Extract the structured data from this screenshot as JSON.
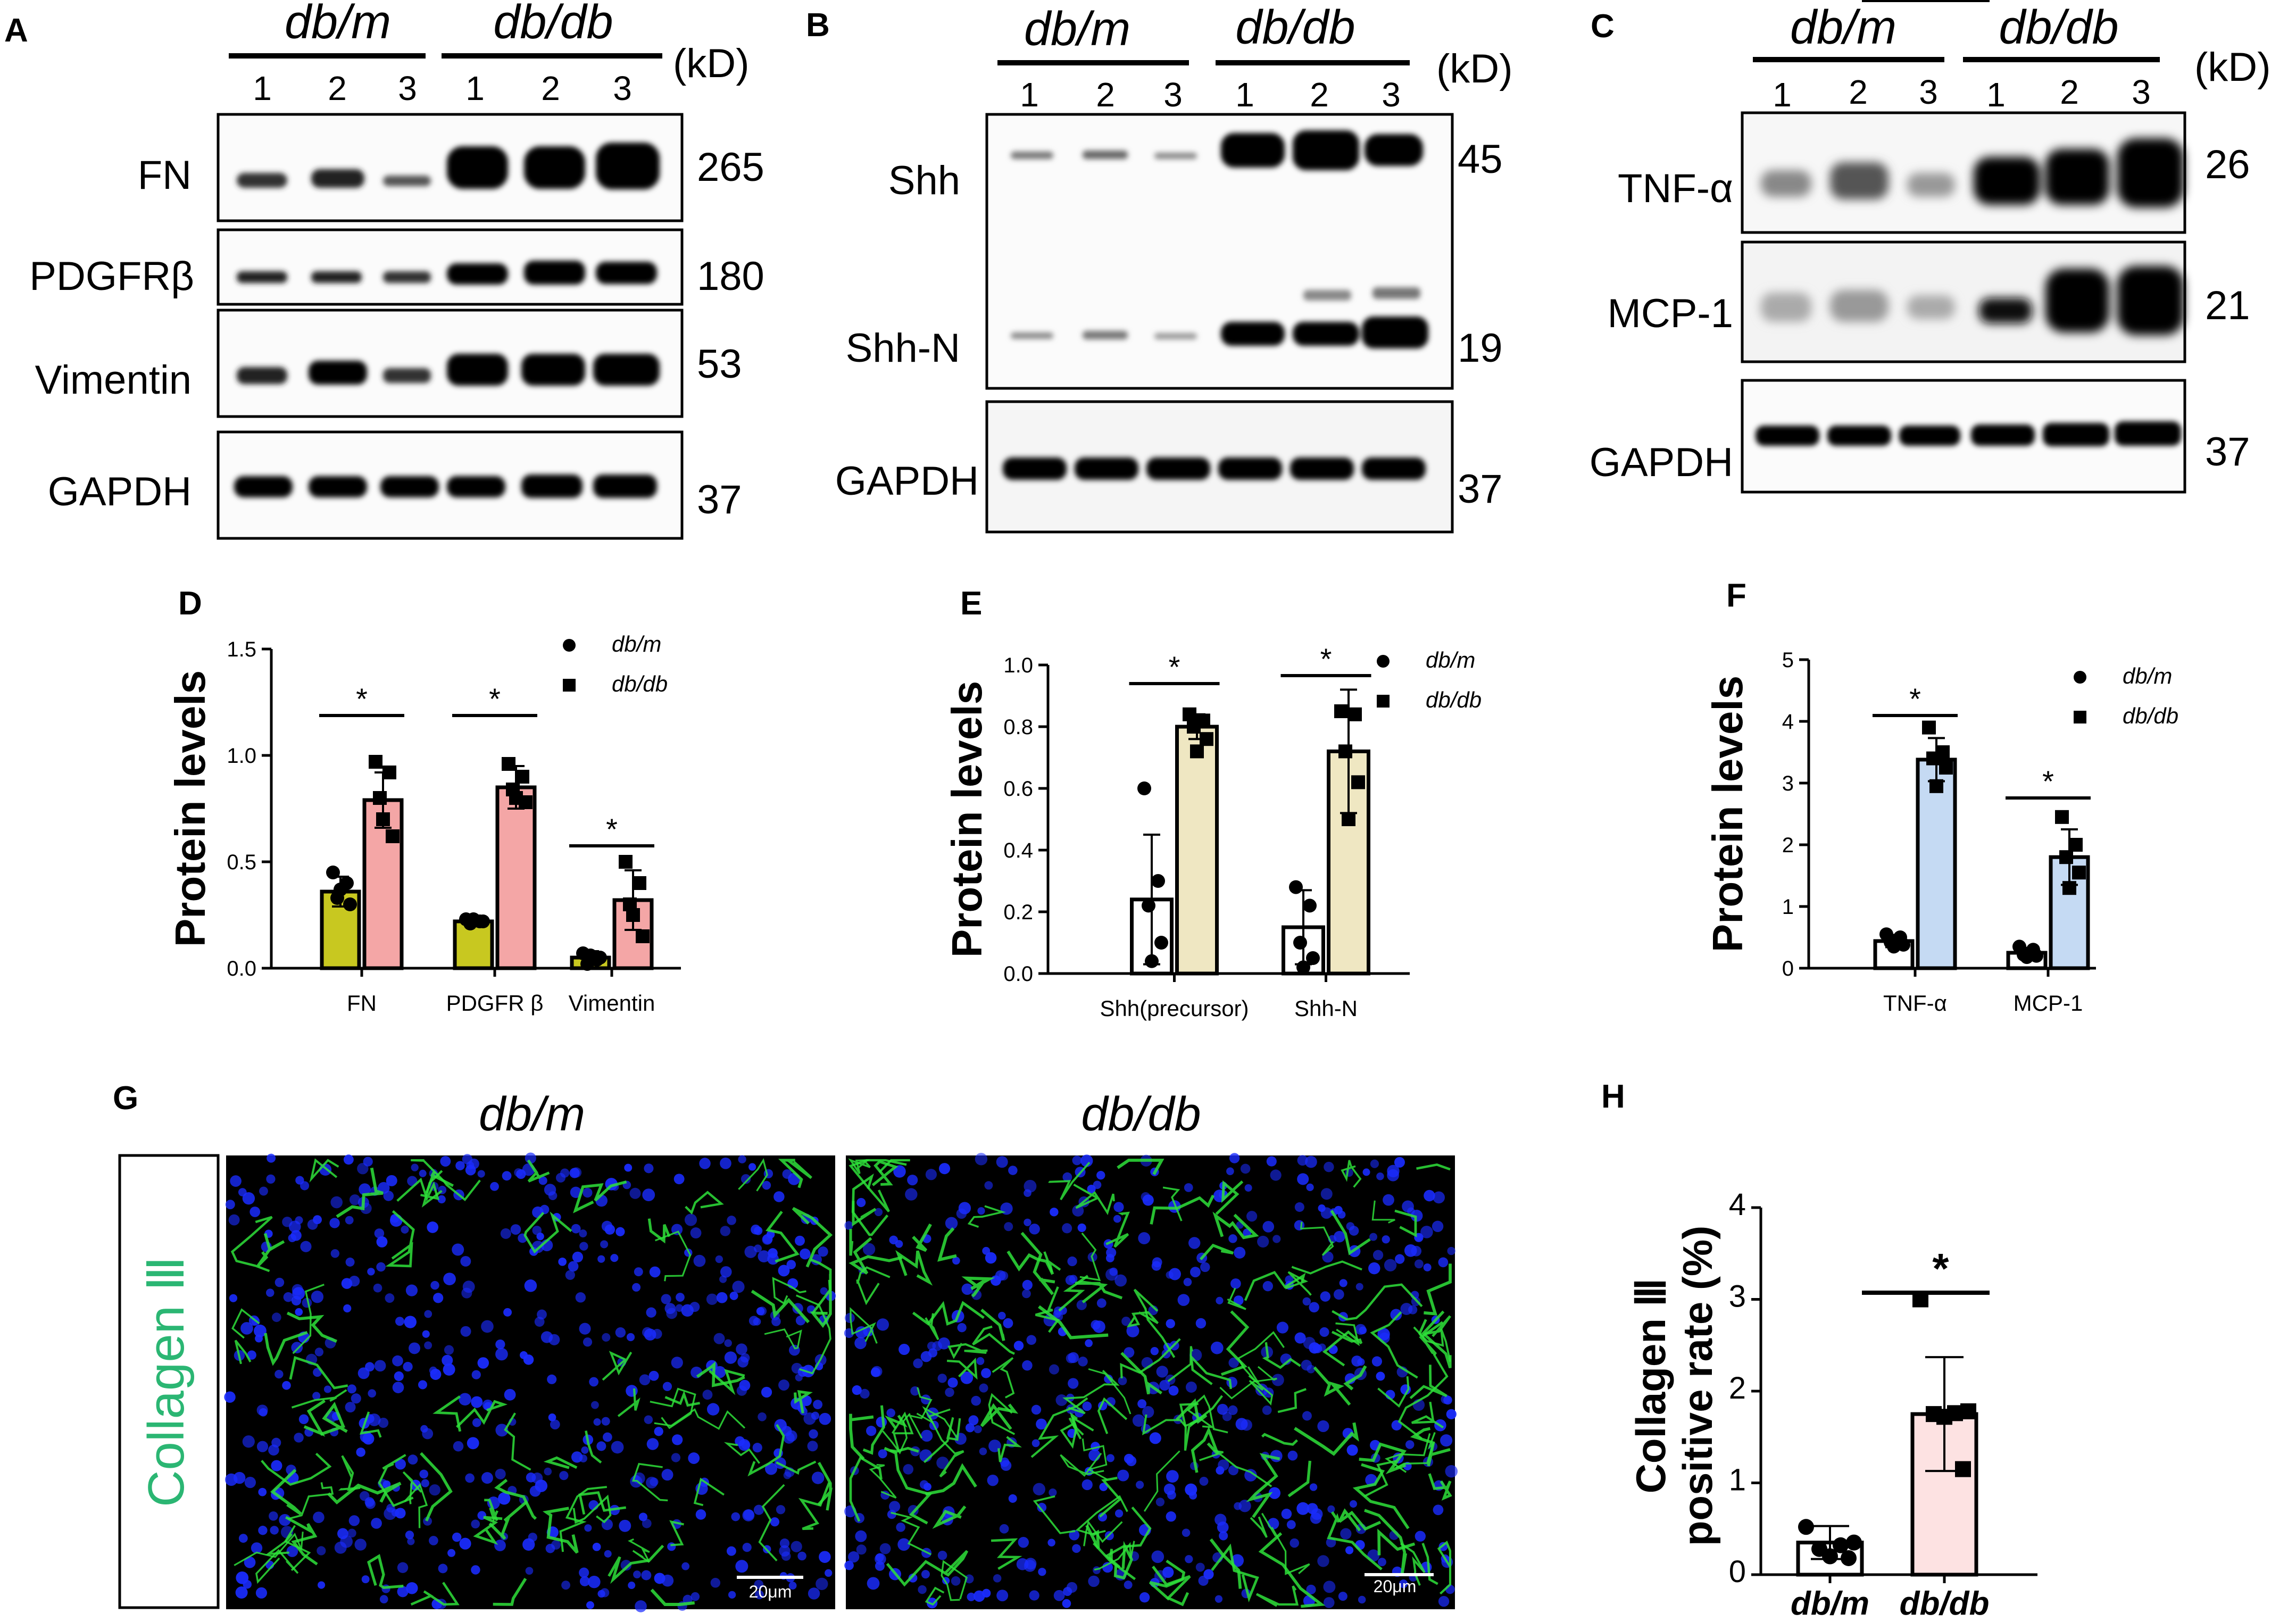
{
  "panels": {
    "A": {
      "letter": "A",
      "group1": "db/m",
      "group2": "db/db",
      "lanes": [
        "1",
        "2",
        "3",
        "1",
        "2",
        "3"
      ],
      "kd": "(kD)",
      "blots": [
        {
          "label": "FN",
          "mw": "265"
        },
        {
          "label": "PDGFRβ",
          "mw": "180"
        },
        {
          "label": "Vimentin",
          "mw": "53"
        },
        {
          "label": "GAPDH",
          "mw": "37"
        }
      ]
    },
    "B": {
      "letter": "B",
      "group1": "db/m",
      "group2": "db/db",
      "lanes": [
        "1",
        "2",
        "3",
        "1",
        "2",
        "3"
      ],
      "kd": "(kD)",
      "blots": [
        {
          "label": "Shh",
          "mw": "45"
        },
        {
          "label": "Shh-N",
          "mw": "19"
        },
        {
          "label": "GAPDH",
          "mw": "37"
        }
      ]
    },
    "C": {
      "letter": "C",
      "group1": "db/m",
      "group2": "db/db",
      "lanes": [
        "1",
        "2",
        "3",
        "1",
        "2",
        "3"
      ],
      "kd": "(kD)",
      "blots": [
        {
          "label": "TNF-α",
          "mw": "26"
        },
        {
          "label": "MCP-1",
          "mw": "21"
        },
        {
          "label": "GAPDH",
          "mw": "37"
        }
      ]
    },
    "G": {
      "letter": "G",
      "title_left": "db/m",
      "title_right": "db/db",
      "stain_label": "Collagen Ⅲ",
      "scale_bar": "20μm",
      "colors": {
        "nuclei": "#1a2cff",
        "collagen": "#2ee03a",
        "background": "#000000"
      }
    }
  },
  "chart_data": [
    {
      "panel": "D",
      "type": "bar",
      "categories": [
        "FN",
        "PDGFR β",
        "Vimentin"
      ],
      "ylabel": "Protein levels",
      "ylim": [
        0,
        1.5
      ],
      "yticks": [
        "0.0",
        "0.5",
        "1.0",
        "1.5"
      ],
      "series": [
        {
          "name": "db/m",
          "color": "#c8c820",
          "values": [
            0.36,
            0.22,
            0.05
          ],
          "errors": [
            0.07,
            0.01,
            0.03
          ],
          "points": [
            [
              0.45,
              0.4,
              0.33,
              0.3,
              0.37
            ],
            [
              0.23,
              0.22,
              0.21,
              0.22,
              0.23
            ],
            [
              0.07,
              0.04,
              0.02,
              0.05,
              0.06
            ]
          ]
        },
        {
          "name": "db/db",
          "color": "#f4a6a6",
          "values": [
            0.79,
            0.85,
            0.32
          ],
          "errors": [
            0.13,
            0.1,
            0.14
          ],
          "points": [
            [
              0.97,
              0.92,
              0.8,
              0.62,
              0.7
            ],
            [
              0.96,
              0.9,
              0.84,
              0.78,
              0.8
            ],
            [
              0.5,
              0.4,
              0.3,
              0.15,
              0.25
            ]
          ]
        }
      ],
      "significance": [
        "*",
        "*",
        "*"
      ],
      "legend": "top-right"
    },
    {
      "panel": "E",
      "type": "bar",
      "categories": [
        "Shh(precursor)",
        "Shh-N"
      ],
      "ylabel": "Protein levels",
      "ylim": [
        0,
        1.0
      ],
      "yticks": [
        "0.0",
        "0.2",
        "0.4",
        "0.6",
        "0.8",
        "1.0"
      ],
      "series": [
        {
          "name": "db/m",
          "color": "#ffffff",
          "values": [
            0.24,
            0.15
          ],
          "errors": [
            0.21,
            0.12
          ],
          "points": [
            [
              0.6,
              0.3,
              0.22,
              0.1,
              0.04
            ],
            [
              0.28,
              0.22,
              0.1,
              0.05,
              0.02
            ]
          ]
        },
        {
          "name": "db/db",
          "color": "#efe7c2",
          "values": [
            0.8,
            0.72
          ],
          "errors": [
            0.04,
            0.2
          ],
          "points": [
            [
              0.84,
              0.82,
              0.8,
              0.76,
              0.72
            ],
            [
              0.85,
              0.84,
              0.72,
              0.62,
              0.5
            ]
          ]
        }
      ],
      "significance": [
        "*",
        "*"
      ],
      "legend": "top-right"
    },
    {
      "panel": "F",
      "type": "bar",
      "categories": [
        "TNF-α",
        "MCP-1"
      ],
      "ylabel": "Protein levels",
      "ylim": [
        0,
        5
      ],
      "yticks": [
        "0",
        "1",
        "2",
        "3",
        "4",
        "5"
      ],
      "series": [
        {
          "name": "db/m",
          "color": "#ffffff",
          "values": [
            0.44,
            0.25
          ],
          "errors": [
            0.1,
            0.08
          ],
          "points": [
            [
              0.55,
              0.5,
              0.42,
              0.38,
              0.35
            ],
            [
              0.35,
              0.3,
              0.22,
              0.2,
              0.18
            ]
          ]
        },
        {
          "name": "db/db",
          "color": "#c5daf3",
          "values": [
            3.38,
            1.8
          ],
          "errors": [
            0.35,
            0.45
          ],
          "points": [
            [
              3.9,
              3.5,
              3.4,
              3.25,
              2.95
            ],
            [
              2.45,
              2.0,
              1.8,
              1.55,
              1.3
            ]
          ]
        }
      ],
      "significance": [
        "*",
        "*"
      ],
      "legend": "top-right"
    },
    {
      "panel": "H",
      "type": "bar",
      "categories": [
        "db/m",
        "db/db"
      ],
      "ylabel": "Collagen Ⅲ positive rate (%)",
      "ylim": [
        0,
        4
      ],
      "yticks": [
        "0",
        "1",
        "2",
        "3",
        "4"
      ],
      "series": [
        {
          "name": "rate",
          "colors": [
            "#ffffff",
            "#fde2e2"
          ],
          "values": [
            0.35,
            1.75
          ],
          "errors": [
            0.18,
            0.62
          ],
          "points": [
            [
              0.52,
              0.35,
              0.32,
              0.28,
              0.2,
              0.18
            ],
            [
              3.0,
              1.78,
              1.76,
              1.75,
              1.72,
              1.15
            ]
          ]
        }
      ],
      "significance": [
        "*"
      ]
    }
  ]
}
